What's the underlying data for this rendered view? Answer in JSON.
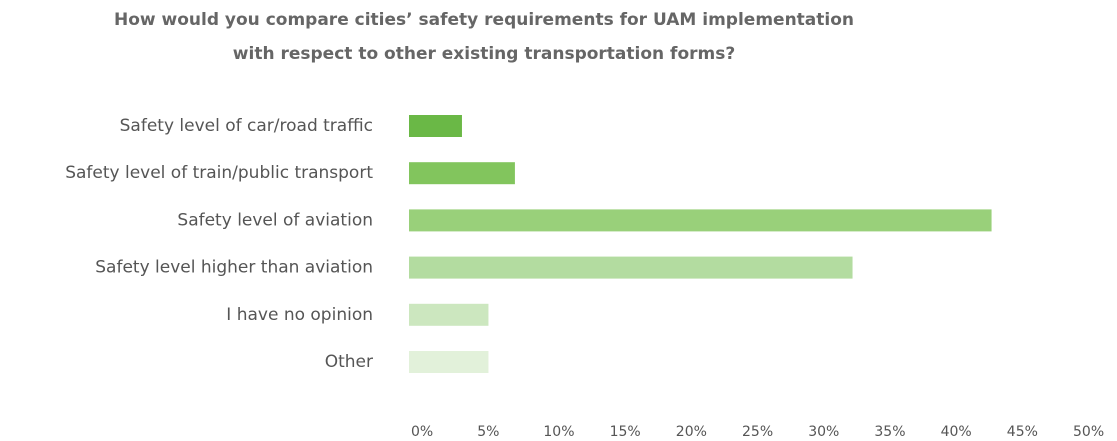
{
  "chart_data": {
    "type": "bar",
    "orientation": "horizontal",
    "title": [
      "How would you compare cities’ safety requirements for UAM implementation",
      "with respect to other existing transportation forms?"
    ],
    "categories": [
      "Safety level of car/road traffic",
      "Safety level of train/public transport",
      "Safety level of aviation",
      "Safety level higher than aviation",
      "I have no opinion",
      "Other"
    ],
    "values": [
      4,
      8,
      44,
      33.5,
      6,
      6
    ],
    "colors": [
      "#6ab846",
      "#82c55d",
      "#99d07a",
      "#b3dca0",
      "#cce7bf",
      "#e2f1da"
    ],
    "xlim": [
      0,
      50
    ],
    "xticks": [
      {
        "value": 0,
        "label": "0%"
      },
      {
        "value": 5,
        "label": "5%"
      },
      {
        "value": 10,
        "label": "10%"
      },
      {
        "value": 15,
        "label": "15%"
      },
      {
        "value": 20,
        "label": "20%"
      },
      {
        "value": 25,
        "label": "25%"
      },
      {
        "value": 30,
        "label": "30%"
      },
      {
        "value": 35,
        "label": "35%"
      },
      {
        "value": 40,
        "label": "40%"
      },
      {
        "value": 45,
        "label": "45%"
      },
      {
        "value": 50,
        "label": "50%"
      }
    ],
    "grid": false
  }
}
